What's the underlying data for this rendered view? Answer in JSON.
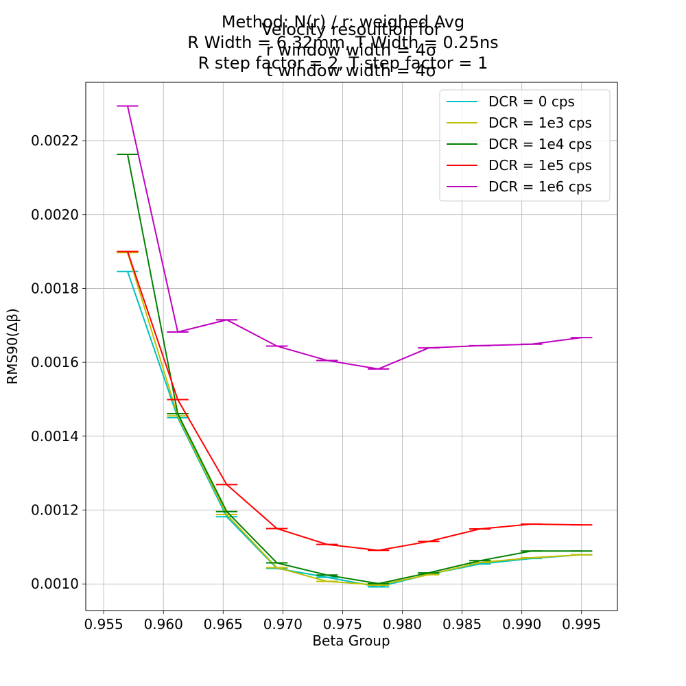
{
  "chart_data": {
    "type": "line",
    "title_a": [
      "Method: N(r) / r: weighed Avg",
      "R Width = 6.32mm, T Width = 0.25ns",
      "R step factor = 2, T step factor = 1"
    ],
    "title_b": [
      "Velocity resoultion for",
      "r window width = 4σ",
      "t window width = 4σ"
    ],
    "xlabel": "Beta Group",
    "ylabel": "RMS90(Δβ)",
    "xlim": [
      0.9535,
      0.998
    ],
    "ylim": [
      0.000928,
      0.002358
    ],
    "xticks": [
      0.955,
      0.96,
      0.965,
      0.97,
      0.975,
      0.98,
      0.985,
      0.99,
      0.995
    ],
    "xtick_labels": [
      "0.955",
      "0.960",
      "0.965",
      "0.970",
      "0.975",
      "0.980",
      "0.985",
      "0.990",
      "0.995"
    ],
    "yticks": [
      0.001,
      0.0012,
      0.0014,
      0.0016,
      0.0018,
      0.002,
      0.0022
    ],
    "ytick_labels": [
      "0.0010",
      "0.0012",
      "0.0014",
      "0.0016",
      "0.0018",
      "0.0020",
      "0.0022"
    ],
    "grid": true,
    "legend_position": "top-right",
    "errorbar_half_width_x": 0.0009,
    "series": [
      {
        "name": "DCR = 0 cps",
        "color": "#00bfbf",
        "x": [
          0.957,
          0.9612,
          0.9653,
          0.9695,
          0.9737,
          0.978,
          0.9822,
          0.9865,
          0.9908,
          0.995
        ],
        "y": [
          0.001846,
          0.00145,
          0.001182,
          0.001042,
          0.001018,
          0.000992,
          0.001026,
          0.001054,
          0.001069,
          0.001079
        ]
      },
      {
        "name": "DCR = 1e3 cps",
        "color": "#bfbf00",
        "x": [
          0.957,
          0.9612,
          0.9653,
          0.9695,
          0.9737,
          0.978,
          0.9822,
          0.9865,
          0.9908,
          0.995
        ],
        "y": [
          0.001897,
          0.001455,
          0.001188,
          0.001044,
          0.001007,
          0.000997,
          0.001025,
          0.001058,
          0.001071,
          0.001079
        ]
      },
      {
        "name": "DCR = 1e4 cps",
        "color": "#008000",
        "x": [
          0.957,
          0.9612,
          0.9653,
          0.9695,
          0.9737,
          0.978,
          0.9822,
          0.9865,
          0.9908,
          0.995
        ],
        "y": [
          0.002163,
          0.001461,
          0.001196,
          0.001057,
          0.001024,
          0.001001,
          0.00103,
          0.001063,
          0.001089,
          0.001089
        ]
      },
      {
        "name": "DCR = 1e5 cps",
        "color": "#ff0000",
        "x": [
          0.957,
          0.9612,
          0.9653,
          0.9695,
          0.9737,
          0.978,
          0.9822,
          0.9865,
          0.9908,
          0.995
        ],
        "y": [
          0.0019,
          0.001499,
          0.001269,
          0.00115,
          0.001107,
          0.001091,
          0.001115,
          0.001149,
          0.001162,
          0.00116
        ]
      },
      {
        "name": "DCR = 1e6 cps",
        "color": "#bf00bf",
        "x": [
          0.957,
          0.9612,
          0.9653,
          0.9695,
          0.9737,
          0.978,
          0.9822,
          0.9865,
          0.9908,
          0.995
        ],
        "y": [
          0.002294,
          0.001682,
          0.001715,
          0.001644,
          0.001605,
          0.001582,
          0.001639,
          0.001645,
          0.001649,
          0.001667
        ]
      }
    ]
  }
}
